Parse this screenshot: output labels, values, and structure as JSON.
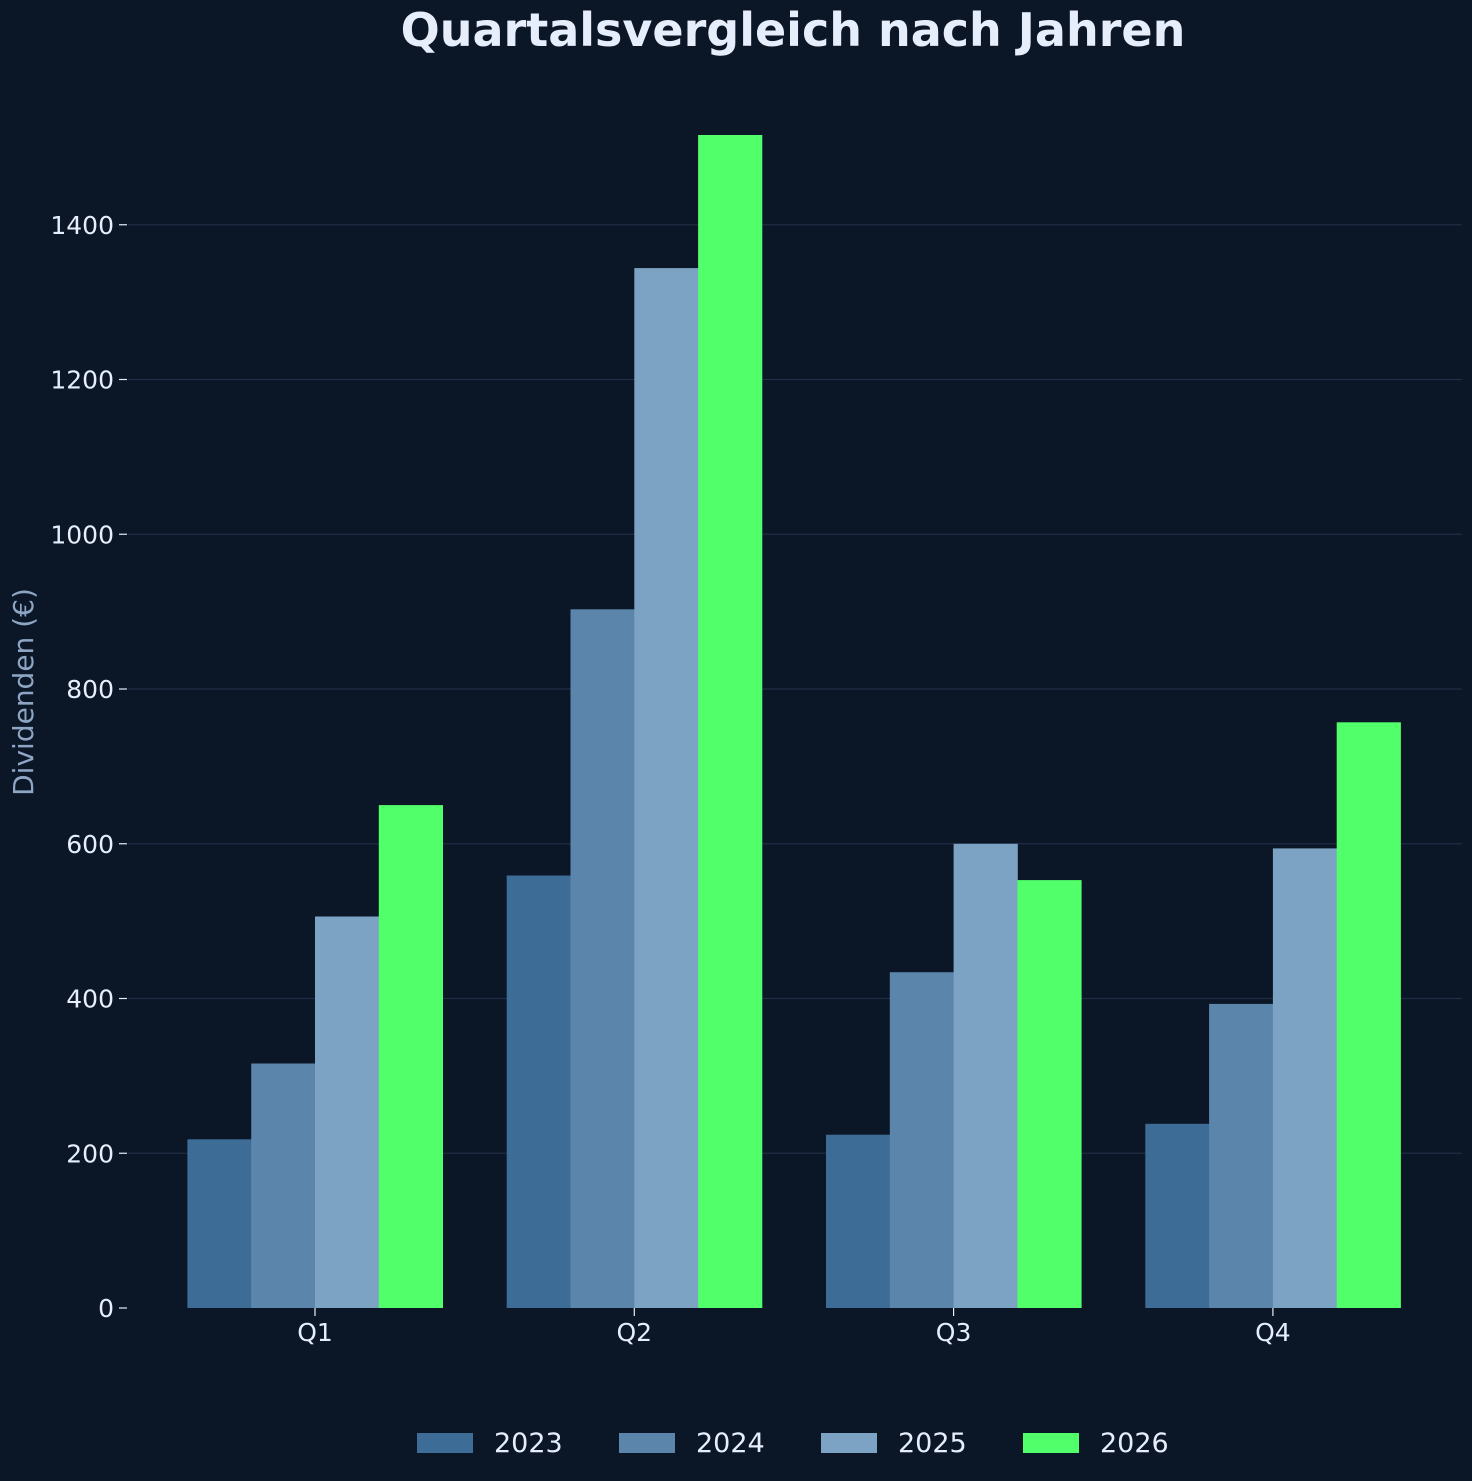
{
  "chart_data": {
    "type": "bar",
    "title": "Quartalsvergleich nach Jahren",
    "xlabel": "",
    "ylabel": "Dividenden (€)",
    "categories": [
      "Q1",
      "Q2",
      "Q3",
      "Q4"
    ],
    "ylim": [
      0,
      1550
    ],
    "yticks": [
      0,
      200,
      400,
      600,
      800,
      1000,
      1200,
      1400
    ],
    "grid": "horizontal",
    "legend_position": "bottom-center",
    "series": [
      {
        "name": "2023",
        "color": "#3d6d97",
        "values": [
          218,
          559,
          224,
          238
        ]
      },
      {
        "name": "2024",
        "color": "#5b85ab",
        "values": [
          316,
          903,
          434,
          393
        ]
      },
      {
        "name": "2025",
        "color": "#7da3c4",
        "values": [
          506,
          1344,
          600,
          594
        ]
      },
      {
        "name": "2026",
        "color": "#50ff6a",
        "values": [
          650,
          1516,
          553,
          757
        ]
      }
    ]
  },
  "colors": {
    "background": "#0b1627",
    "grid": "#1f2e44",
    "text": "#e6eefc",
    "axis_label": "#8ea6c4"
  }
}
